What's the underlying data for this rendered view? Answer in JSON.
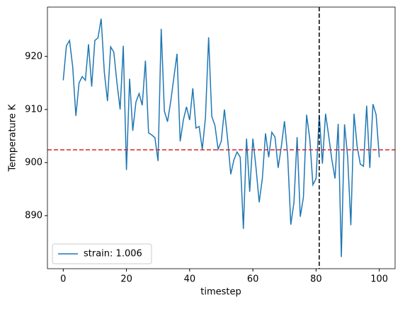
{
  "chart_data": {
    "type": "line",
    "x_label": "timestep",
    "y_label": "Temperature K",
    "x": [
      0,
      1,
      2,
      3,
      4,
      5,
      6,
      7,
      8,
      9,
      10,
      11,
      12,
      13,
      14,
      15,
      16,
      17,
      18,
      19,
      20,
      21,
      22,
      23,
      24,
      25,
      26,
      27,
      28,
      29,
      30,
      31,
      32,
      33,
      34,
      35,
      36,
      37,
      38,
      39,
      40,
      41,
      42,
      43,
      44,
      45,
      46,
      47,
      48,
      49,
      50,
      51,
      52,
      53,
      54,
      55,
      56,
      57,
      58,
      59,
      60,
      61,
      62,
      63,
      64,
      65,
      66,
      67,
      68,
      69,
      70,
      71,
      72,
      73,
      74,
      75,
      76,
      77,
      78,
      79,
      80,
      81,
      82,
      83,
      84,
      85,
      86,
      87,
      88,
      89,
      90,
      91,
      92,
      93,
      94,
      95,
      96,
      97,
      98,
      99,
      100
    ],
    "series": [
      {
        "name": "strain: 1.006",
        "color": "#1f77b4",
        "values": [
          915.5,
          922,
          923,
          918,
          908.8,
          915,
          916.2,
          915.5,
          922.3,
          914.3,
          923,
          923.5,
          927.1,
          917,
          911.6,
          921.8,
          920.8,
          915,
          910,
          922,
          898.6,
          915.8,
          906,
          911.4,
          913,
          910.8,
          919.2,
          905.6,
          905.2,
          904.7,
          900.3,
          925.2,
          909.7,
          907.7,
          911.5,
          916,
          920.5,
          904,
          908,
          910.5,
          908,
          914,
          906.5,
          906.8,
          902.5,
          908.5,
          923.6,
          908.7,
          907,
          902.5,
          904,
          910,
          904.5,
          897.8,
          900.5,
          902,
          901,
          887.5,
          904.5,
          894.5,
          904.5,
          899,
          892.5,
          897,
          905.5,
          901,
          905.7,
          904.8,
          899,
          903,
          907.8,
          901.5,
          888.3,
          892.5,
          904.8,
          889.8,
          893.5,
          909,
          904.5,
          895.8,
          897,
          909,
          899.8,
          909.2,
          905,
          900.5,
          897,
          907.3,
          882.2,
          907.2,
          901,
          888.2,
          909.2,
          903,
          899.7,
          899.3,
          910.7,
          899,
          911,
          909,
          901
        ]
      }
    ],
    "hline": {
      "value": 902.4,
      "color": "#d62728"
    },
    "vline": {
      "value": 81,
      "color": "#000000"
    },
    "xlim": [
      -5,
      105
    ],
    "ylim": [
      880,
      929.3
    ],
    "xticks": [
      0,
      20,
      40,
      60,
      80,
      100
    ],
    "yticks": [
      890,
      900,
      910,
      920
    ],
    "legend": "lower left",
    "grid": false
  }
}
